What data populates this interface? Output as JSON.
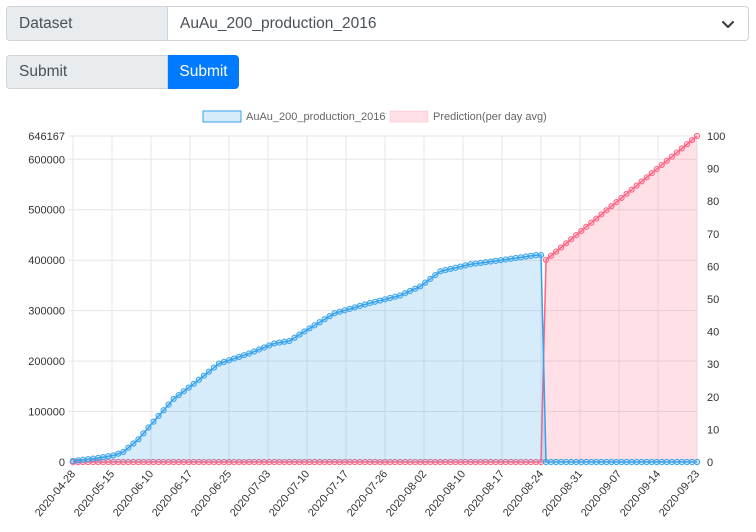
{
  "form": {
    "dataset_label": "Dataset",
    "dataset_selected": "AuAu_200_production_2016",
    "submit_label": "Submit",
    "submit_button": "Submit"
  },
  "colors": {
    "series_line": "#36a2eb",
    "series_fill": "rgba(54,162,235,0.2)",
    "prediction_line": "#ff6384",
    "prediction_fill": "rgba(255,99,132,0.2)",
    "grid": "#e6e6e6",
    "button": "#007bff"
  },
  "chart_data": {
    "type": "line",
    "legend_placement": "top",
    "grid": true,
    "x_tick_labels": [
      "2020-04-28",
      "2020-05-15",
      "2020-06-10",
      "2020-06-17",
      "2020-06-25",
      "2020-07-03",
      "2020-07-10",
      "2020-07-17",
      "2020-07-26",
      "2020-08-02",
      "2020-08-10",
      "2020-08-17",
      "2020-08-24",
      "2020-08-31",
      "2020-09-07",
      "2020-09-14",
      "2020-09-23"
    ],
    "y_left": {
      "ticks": [
        0,
        100000,
        200000,
        300000,
        400000,
        500000,
        600000,
        646167
      ],
      "range": [
        0,
        646167
      ]
    },
    "y_right": {
      "ticks": [
        0,
        10,
        20,
        30,
        40,
        50,
        60,
        70,
        80,
        90,
        100
      ],
      "range": [
        0,
        100
      ]
    },
    "num_points": 125,
    "series": [
      {
        "name": "AuAu_200_production_2016",
        "axis": "left",
        "keypoints": [
          [
            0,
            2000
          ],
          [
            5,
            8000
          ],
          [
            8,
            13000
          ],
          [
            10,
            20000
          ],
          [
            13,
            45000
          ],
          [
            16,
            80000
          ],
          [
            20,
            125000
          ],
          [
            24,
            155000
          ],
          [
            29,
            195000
          ],
          [
            35,
            215000
          ],
          [
            40,
            235000
          ],
          [
            43,
            240000
          ],
          [
            47,
            265000
          ],
          [
            52,
            295000
          ],
          [
            59,
            315000
          ],
          [
            65,
            330000
          ],
          [
            69,
            348000
          ],
          [
            73,
            378000
          ],
          [
            79,
            392000
          ],
          [
            85,
            400000
          ],
          [
            92,
            410000
          ],
          [
            93,
            410000
          ],
          [
            94,
            0
          ],
          [
            124,
            0
          ]
        ]
      },
      {
        "name": "Prediction(per day avg)",
        "axis": "right",
        "keypoints": [
          [
            0,
            0
          ],
          [
            93,
            0
          ],
          [
            94,
            62
          ],
          [
            124,
            100
          ]
        ]
      }
    ]
  }
}
